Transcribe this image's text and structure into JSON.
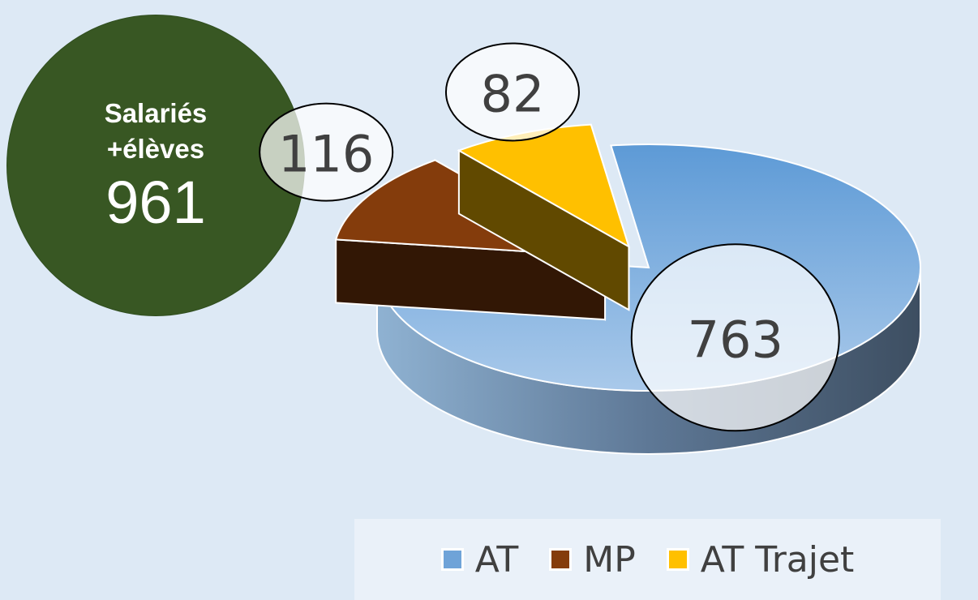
{
  "total": {
    "label_line1": "Salariés",
    "label_line2": "+élèves",
    "value": "961"
  },
  "chart_data": {
    "type": "pie",
    "categories": [
      "AT",
      "MP",
      "AT Trajet"
    ],
    "values": [
      763,
      116,
      82
    ],
    "colors": [
      "#6fa3d8",
      "#843c0c",
      "#ffc000"
    ],
    "title": "",
    "legend_position": "bottom"
  },
  "legend": [
    {
      "label": "AT",
      "color": "#6fa3d8"
    },
    {
      "label": "MP",
      "color": "#843c0c"
    },
    {
      "label": "AT Trajet",
      "color": "#ffc000"
    }
  ],
  "data_labels": [
    "763",
    "116",
    "82"
  ]
}
